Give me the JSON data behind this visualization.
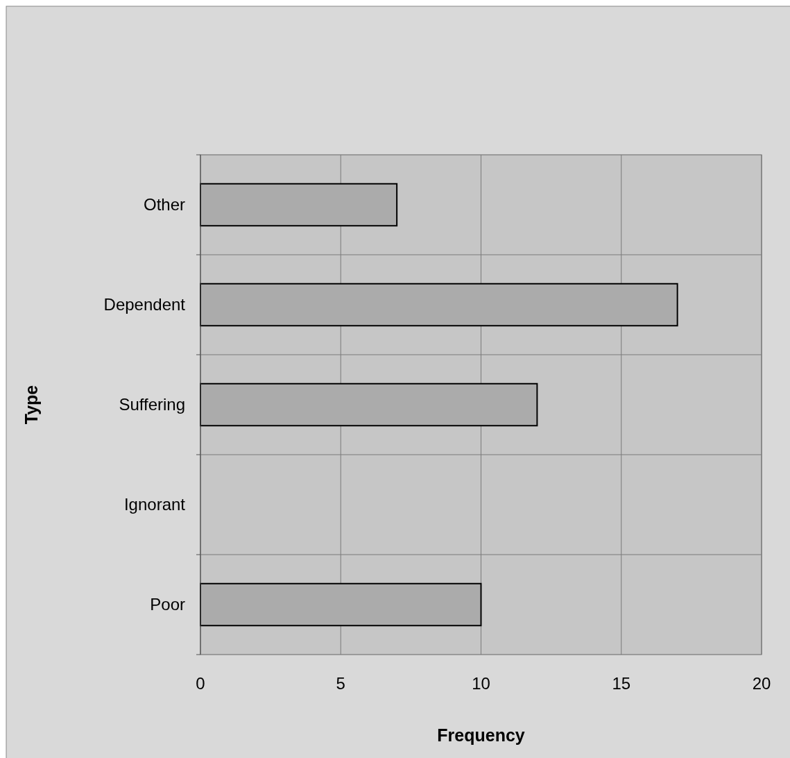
{
  "chart_data": {
    "type": "bar",
    "orientation": "horizontal",
    "xlabel": "Frequency",
    "ylabel": "Type",
    "categories": [
      "Other",
      "Dependent",
      "Suffering",
      "Ignorant",
      "Poor"
    ],
    "values": [
      7,
      17,
      12,
      0,
      10
    ],
    "color": "#ababab",
    "xlim": [
      0,
      20
    ],
    "xticks": [
      0,
      5,
      10,
      15,
      20
    ],
    "grid": true
  }
}
